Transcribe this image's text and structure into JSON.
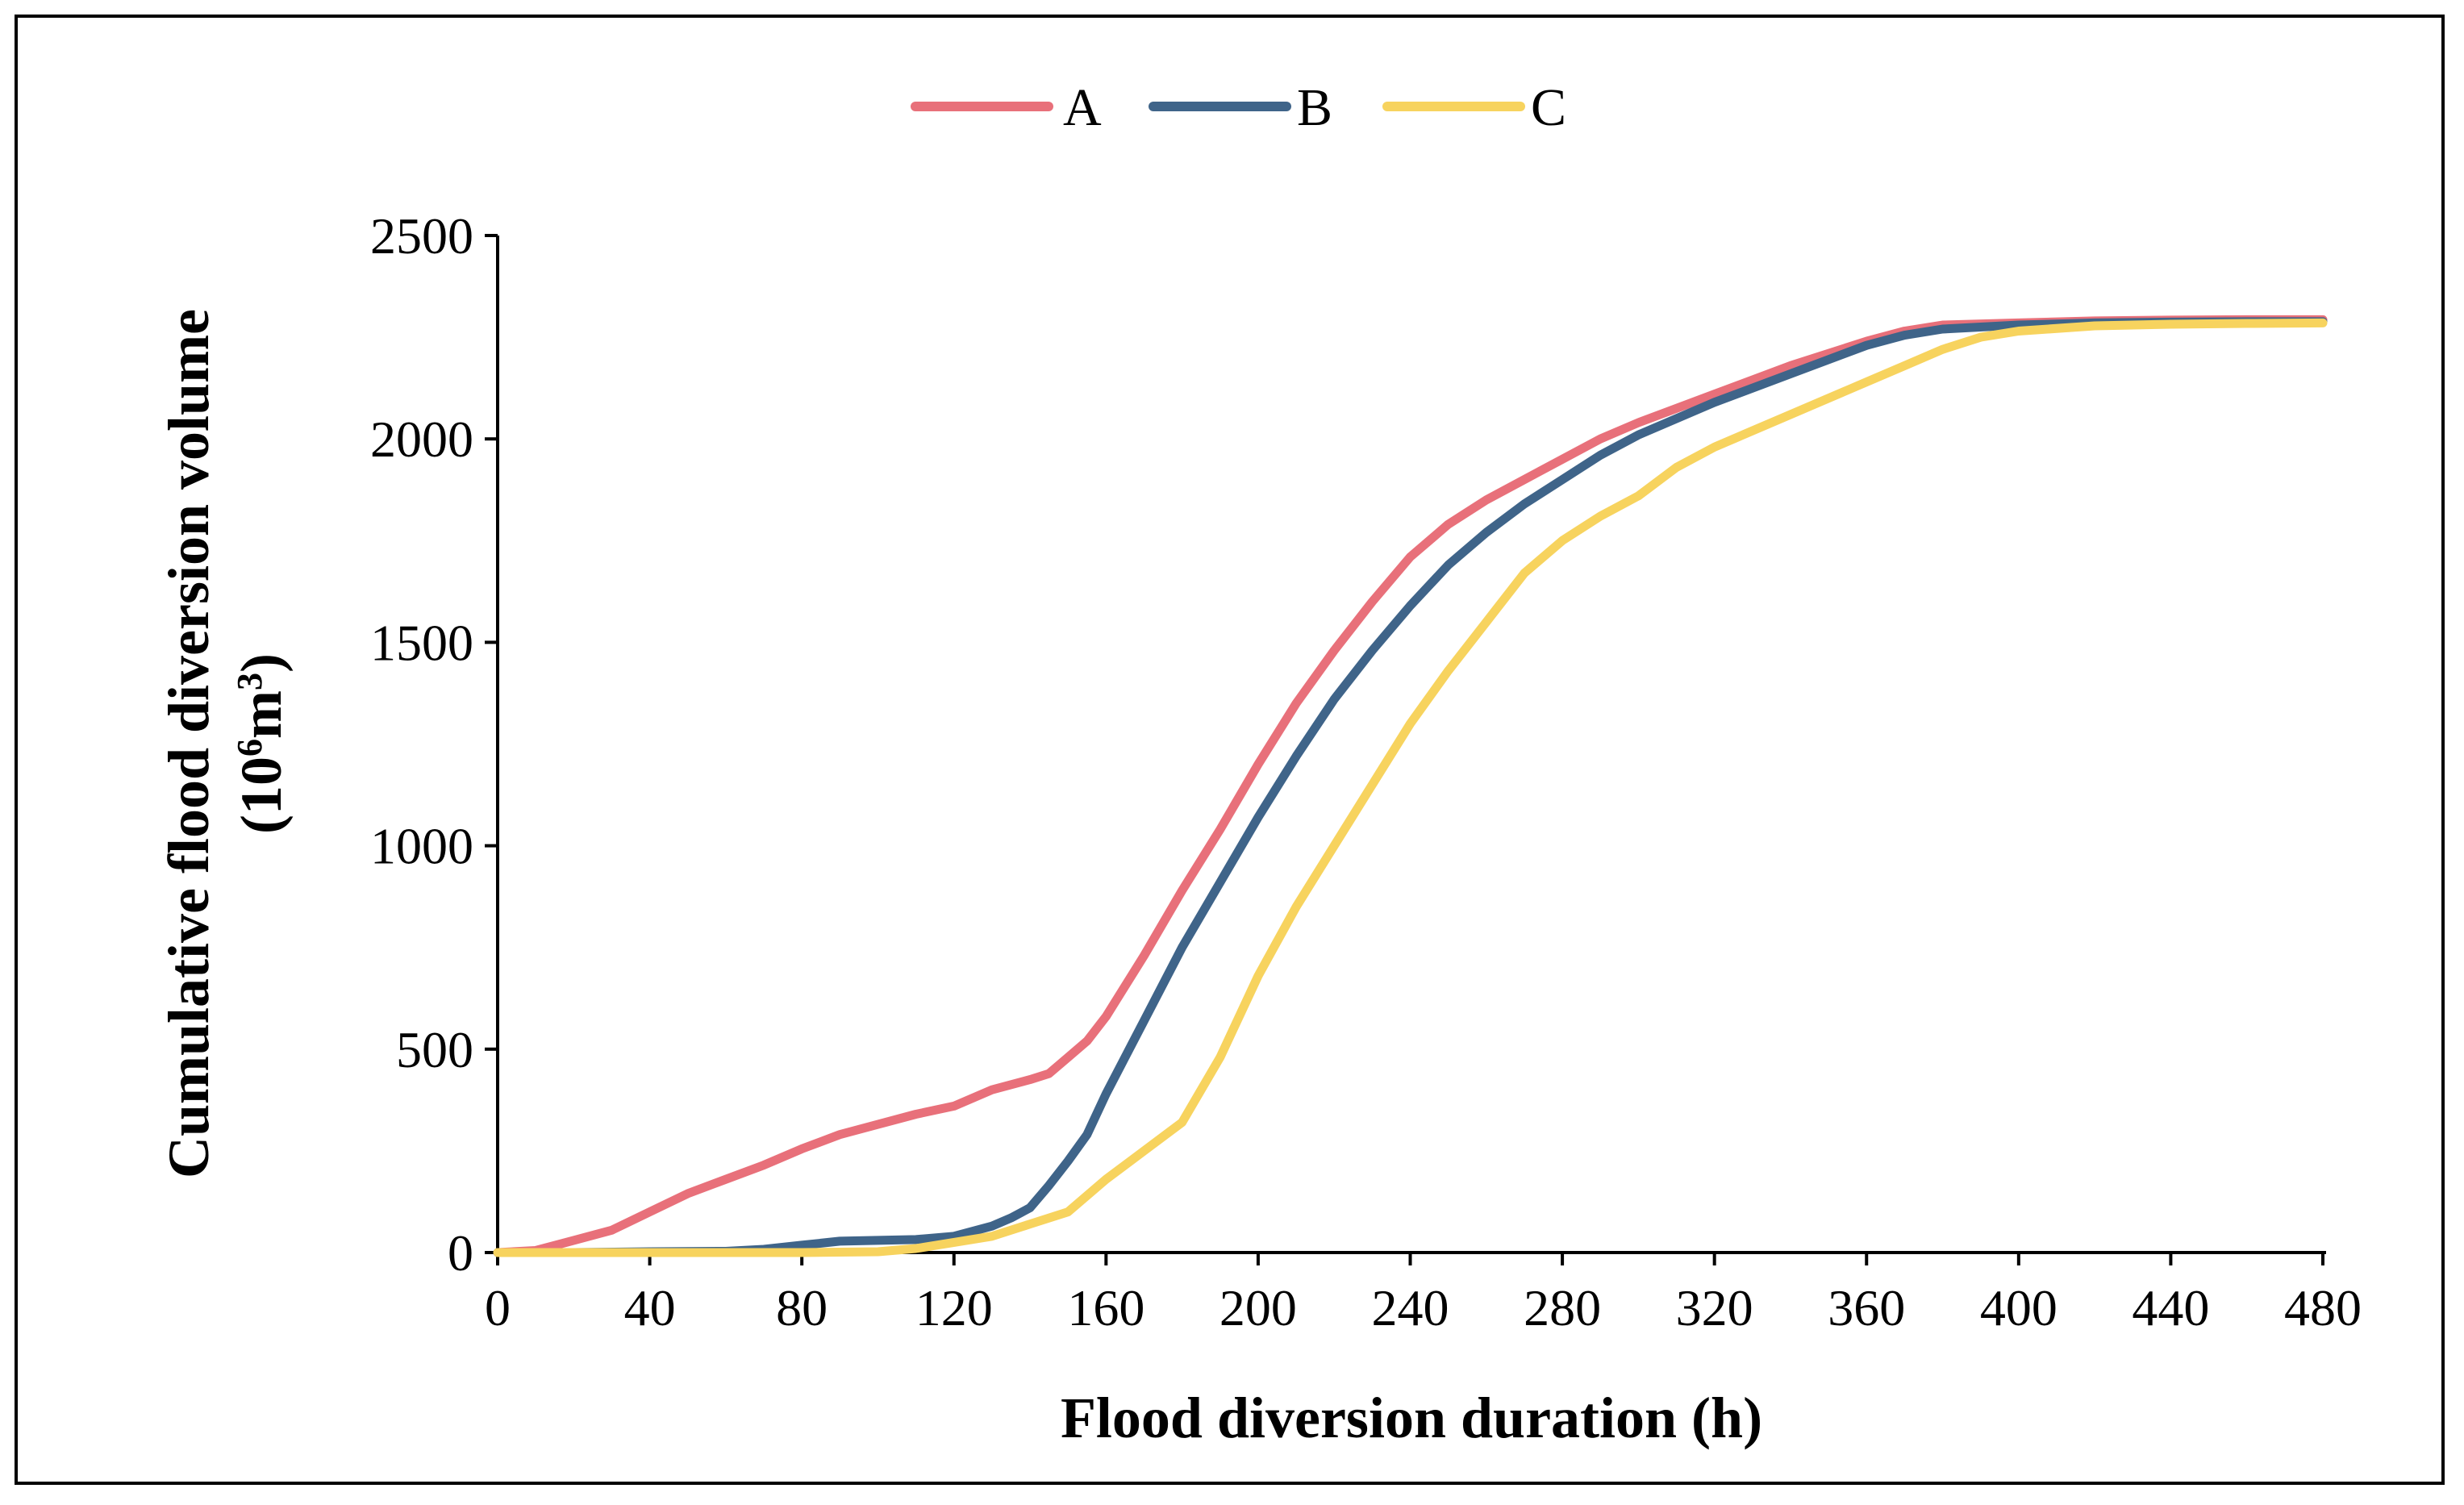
{
  "chart_data": {
    "type": "line",
    "title": "",
    "xlabel": "Flood diversion duration (h)",
    "ylabel_line1": "Cumulative flood diversion volume",
    "ylabel_line2_prefix": "(10",
    "ylabel_line2_sup": "6",
    "ylabel_line2_unit": "m",
    "ylabel_line2_sup2": "3",
    "ylabel_line2_suffix": ")",
    "xlim": [
      0,
      480
    ],
    "ylim": [
      0,
      2500
    ],
    "x_ticks": [
      "0",
      "40",
      "80",
      "120",
      "160",
      "200",
      "240",
      "280",
      "320",
      "360",
      "400",
      "440",
      "480"
    ],
    "y_ticks": [
      "0",
      "500",
      "1000",
      "1500",
      "2000",
      "2500"
    ],
    "legend_position": "top-center",
    "series": [
      {
        "name": "A",
        "color": "#E8707A",
        "x": [
          0,
          10,
          20,
          30,
          40,
          50,
          60,
          70,
          80,
          90,
          100,
          110,
          120,
          130,
          140,
          145,
          150,
          155,
          160,
          170,
          180,
          190,
          200,
          210,
          220,
          230,
          240,
          250,
          260,
          270,
          280,
          290,
          300,
          320,
          340,
          360,
          370,
          380,
          400,
          420,
          440,
          460,
          480
        ],
        "values": [
          0,
          5,
          30,
          55,
          100,
          145,
          180,
          215,
          255,
          290,
          315,
          340,
          360,
          400,
          425,
          440,
          480,
          520,
          580,
          730,
          890,
          1040,
          1200,
          1350,
          1480,
          1600,
          1710,
          1790,
          1850,
          1900,
          1950,
          2000,
          2040,
          2110,
          2180,
          2240,
          2265,
          2280,
          2285,
          2290,
          2292,
          2293,
          2293
        ]
      },
      {
        "name": "B",
        "color": "#3F6489",
        "x": [
          0,
          20,
          40,
          60,
          70,
          80,
          90,
          100,
          110,
          120,
          130,
          135,
          140,
          145,
          150,
          155,
          160,
          170,
          180,
          190,
          200,
          210,
          220,
          230,
          240,
          250,
          260,
          270,
          280,
          290,
          300,
          320,
          340,
          360,
          370,
          380,
          400,
          420,
          440,
          460,
          480
        ],
        "values": [
          0,
          0,
          2,
          3,
          8,
          18,
          28,
          30,
          32,
          40,
          65,
          85,
          110,
          165,
          225,
          290,
          390,
          570,
          750,
          910,
          1070,
          1220,
          1360,
          1480,
          1590,
          1690,
          1770,
          1840,
          1900,
          1960,
          2010,
          2090,
          2160,
          2230,
          2255,
          2270,
          2280,
          2285,
          2287,
          2288,
          2288
        ]
      },
      {
        "name": "C",
        "color": "#F7D35E",
        "x": [
          0,
          40,
          80,
          100,
          110,
          120,
          130,
          140,
          150,
          160,
          170,
          180,
          190,
          200,
          210,
          220,
          230,
          240,
          250,
          260,
          270,
          280,
          290,
          300,
          310,
          320,
          340,
          360,
          370,
          380,
          390,
          400,
          420,
          440,
          460,
          480
        ],
        "values": [
          0,
          0,
          0,
          2,
          10,
          25,
          40,
          70,
          100,
          180,
          250,
          320,
          480,
          680,
          850,
          1000,
          1150,
          1300,
          1430,
          1550,
          1670,
          1750,
          1810,
          1860,
          1930,
          1980,
          2060,
          2140,
          2180,
          2220,
          2250,
          2265,
          2278,
          2282,
          2284,
          2285
        ]
      }
    ]
  }
}
